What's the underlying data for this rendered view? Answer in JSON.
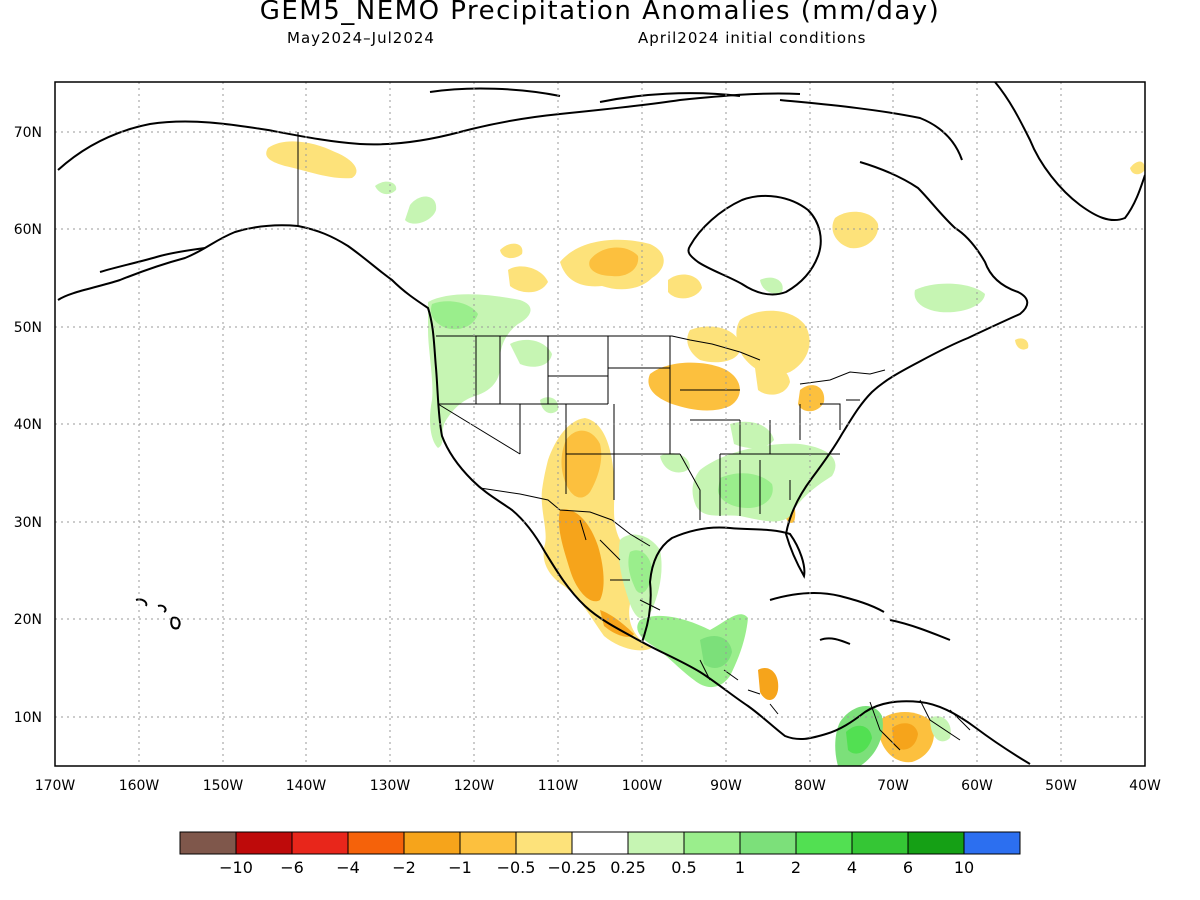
{
  "title": "GEM5_NEMO Precipitation Anomalies (mm/day)",
  "subtitle_left": "May2024–Jul2024",
  "subtitle_right": "April2024 initial conditions",
  "map": {
    "lon_range": [
      -170,
      -40
    ],
    "lat_range": [
      5,
      75
    ],
    "lon_labels": [
      "170W",
      "160W",
      "150W",
      "140W",
      "130W",
      "120W",
      "110W",
      "100W",
      "90W",
      "80W",
      "70W",
      "60W",
      "50W",
      "40W"
    ],
    "lat_labels": [
      "10N",
      "20N",
      "30N",
      "40N",
      "50N",
      "60N",
      "70N"
    ],
    "grid": "dotted",
    "regions": [
      {
        "name": "Alaska north slope",
        "category": "-0.5 to -0.25",
        "color": "#fde27a"
      },
      {
        "name": "Baffin / Quebec",
        "category": "-0.5 to -0.25",
        "color": "#fde27a"
      },
      {
        "name": "Manitoba / Saskatchewan",
        "category": "-1 to -0.5",
        "color": "#fcc03e"
      },
      {
        "name": "Great Lakes / Upper Midwest",
        "category": "-1 to -0.5",
        "color": "#fcc03e"
      },
      {
        "name": "Southwest US / NW Mexico",
        "category": "-2 to -1",
        "color": "#f6a41b"
      },
      {
        "name": "Venezuela",
        "category": "-2 to -1",
        "color": "#f6a41b"
      },
      {
        "name": "Nicaragua",
        "category": "-2 to -1",
        "color": "#f6a41b"
      },
      {
        "name": "Pacific Northwest",
        "category": "0.25 to 0.5",
        "color": "#c6f5b3"
      },
      {
        "name": "Southeast US",
        "category": "0.5 to 1",
        "color": "#9aee8c"
      },
      {
        "name": "Eastern Mexico",
        "category": "0.5 to 1",
        "color": "#9aee8c"
      },
      {
        "name": "Central America",
        "category": "0.5 to 1",
        "color": "#7ce07a"
      },
      {
        "name": "Colombia",
        "category": "1 to 2",
        "color": "#6be36b"
      },
      {
        "name": "Labrador",
        "category": "0.25 to 0.5",
        "color": "#c6f5b3"
      }
    ]
  },
  "legend": {
    "labels": [
      "−10",
      "−6",
      "−4",
      "−2",
      "−1",
      "−0.5",
      "−0.25",
      "0.25",
      "0.5",
      "1",
      "2",
      "4",
      "6",
      "10"
    ],
    "colors": [
      "#7f574b",
      "#be0a0a",
      "#e8261b",
      "#f5620a",
      "#f6a41b",
      "#fcc03e",
      "#fde27a",
      "#ffffff",
      "#c6f5b3",
      "#9aee8c",
      "#7ce07a",
      "#52e052",
      "#35c635",
      "#15a015",
      "#2c6ff0"
    ]
  }
}
